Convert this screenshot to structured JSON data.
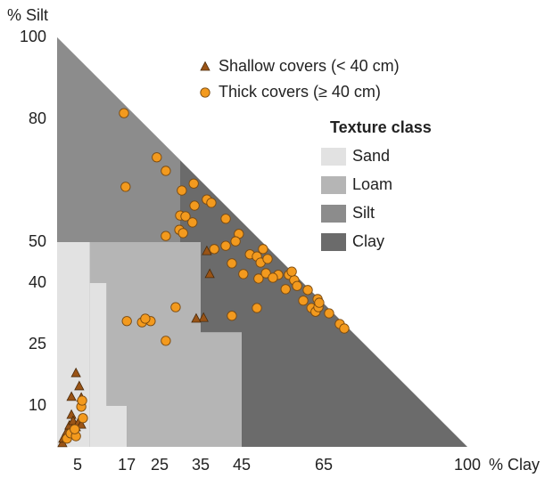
{
  "chart_data": {
    "type": "scatter",
    "x_label": "% Clay",
    "y_label": "% Silt",
    "xlim": [
      0,
      100
    ],
    "ylim": [
      0,
      100
    ],
    "xticks": [
      5,
      17,
      25,
      35,
      45,
      65,
      100
    ],
    "yticks": [
      10,
      25,
      40,
      50,
      80,
      100
    ],
    "legend_title": "Texture class",
    "texture_classes": [
      {
        "name": "Sand",
        "color": "#e2e2e2",
        "rects": [
          [
            0,
            0,
            8,
            50
          ],
          [
            8,
            0,
            17,
            10
          ],
          [
            8,
            10,
            12,
            40
          ]
        ]
      },
      {
        "name": "Loam",
        "color": "#b5b5b5",
        "rects": [
          [
            8,
            10,
            35,
            50
          ],
          [
            17,
            0,
            45,
            28
          ]
        ]
      },
      {
        "name": "Silt",
        "color": "#8c8c8c",
        "rects": [
          [
            0,
            50,
            30,
            100
          ]
        ]
      },
      {
        "name": "Clay",
        "color": "#6b6b6b",
        "rects": [
          [
            0,
            0,
            100,
            100
          ]
        ]
      }
    ],
    "series": [
      {
        "name": "Shallow covers (< 40 cm)",
        "marker": "triangle",
        "color": "#9a5416",
        "x": [
          1.3,
          1.5,
          2.4,
          3.0,
          3.5,
          3.9,
          4.6,
          5.2,
          5.9,
          3.5,
          4.6,
          5.4,
          5.9,
          35.7,
          33.9,
          36.5,
          37.2
        ],
        "values": [
          0.9,
          2.0,
          3.7,
          5.2,
          7.8,
          6.3,
          4.8,
          5.9,
          5.4,
          12.2,
          18.0,
          14.8,
          12.0,
          31.5,
          31.3,
          47.8,
          42.2
        ]
      },
      {
        "name": "Thick covers (≥ 40 cm)",
        "marker": "circle",
        "color": "#f39a1e",
        "x": [
          16.3,
          16.7,
          24.3,
          26.5,
          30.4,
          33.3,
          30,
          31.3,
          33.5,
          36.5,
          37.6,
          33,
          29.8,
          30.7,
          26.5,
          41.1,
          44.3,
          43.5,
          41.1,
          38.3,
          42.6,
          45.4,
          47,
          48.7,
          50.2,
          49.6,
          51.3,
          53.9,
          49.1,
          50.9,
          52.6,
          56.5,
          57.8,
          55.7,
          57.2,
          58.5,
          61.1,
          63.5,
          62,
          63,
          63.7,
          63.9,
          66.3,
          68.9,
          70,
          60,
          48.7,
          42.6,
          28.9,
          22.8,
          20.7,
          17,
          21.5,
          26.5,
          2.4,
          3.3,
          4.6,
          6.3,
          5.9,
          6.1,
          4.3
        ],
        "values": [
          81.5,
          63.5,
          70.7,
          67.4,
          62.6,
          64.3,
          56.5,
          56.3,
          58.9,
          60.4,
          59.6,
          54.8,
          53,
          52.2,
          51.5,
          55.7,
          52,
          50.2,
          49.1,
          48.3,
          44.8,
          42.2,
          47,
          46.5,
          48.3,
          45,
          45.9,
          42,
          41.1,
          42.4,
          41.3,
          42,
          40.7,
          38.5,
          42.8,
          39.3,
          38.3,
          36.1,
          33.9,
          33,
          34.1,
          35.2,
          32.6,
          30,
          28.9,
          35.7,
          33.9,
          32,
          34.1,
          30.7,
          30.4,
          30.7,
          31.3,
          25.9,
          2,
          3.3,
          2.6,
          7,
          9.8,
          11.3,
          4.3
        ]
      }
    ]
  }
}
